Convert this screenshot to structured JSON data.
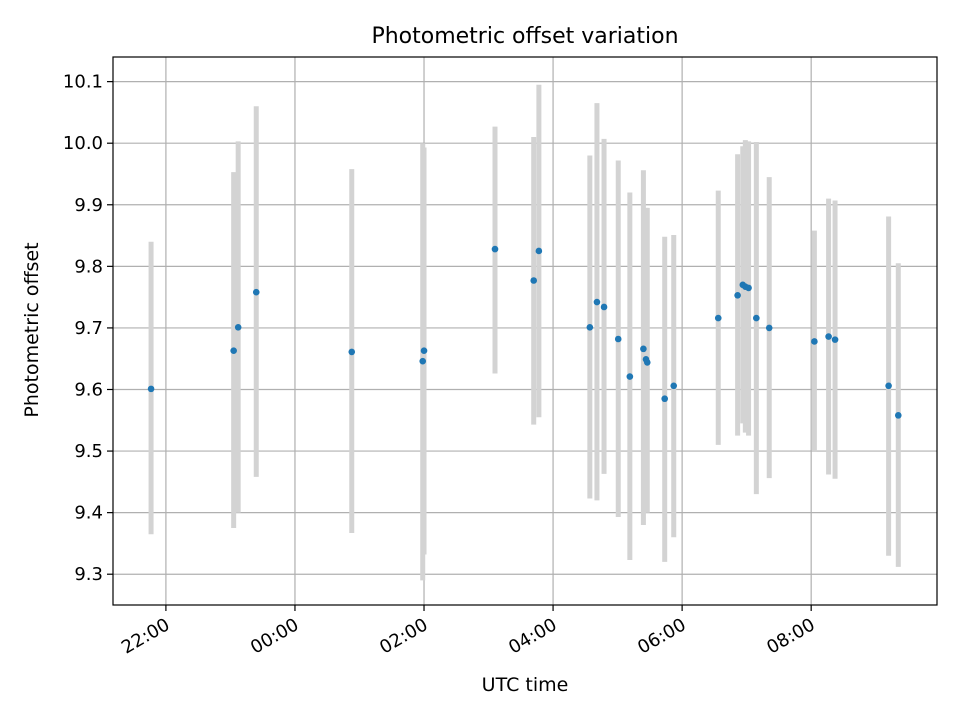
{
  "chart_data": {
    "type": "scatter",
    "title": "Photometric offset variation",
    "xlabel": "UTC time",
    "ylabel": "Photometric offset",
    "grid": true,
    "legend": "none",
    "x_tick_labels": [
      "22:00",
      "00:00",
      "02:00",
      "04:00",
      "06:00",
      "08:00"
    ],
    "x_tick_hours": [
      -2,
      0,
      2,
      4,
      6,
      8
    ],
    "y_tick_labels": [
      "9.3",
      "9.4",
      "9.5",
      "9.6",
      "9.7",
      "9.8",
      "9.9",
      "10.0",
      "10.1"
    ],
    "y_tick_values": [
      9.3,
      9.4,
      9.5,
      9.6,
      9.7,
      9.8,
      9.9,
      10.0,
      10.1
    ],
    "xlim_hours": [
      -2.82,
      9.95
    ],
    "ylim": [
      9.25,
      10.14
    ],
    "point_color": "#1f77b4",
    "errorbar_color": "#d3d3d3",
    "series": [
      {
        "x_hours": [
          -2.23,
          -0.95,
          -0.88,
          -0.6,
          0.88,
          1.98,
          2.0,
          3.1,
          3.7,
          3.78,
          4.57,
          4.68,
          4.79,
          5.01,
          5.19,
          5.4,
          5.44,
          5.46,
          5.73,
          5.87,
          6.56,
          6.86,
          6.94,
          6.98,
          7.03,
          7.15,
          7.35,
          8.05,
          8.27,
          8.37,
          9.2,
          9.35
        ],
        "y": [
          9.601,
          9.663,
          9.701,
          9.758,
          9.661,
          9.646,
          9.663,
          9.828,
          9.777,
          9.825,
          9.701,
          9.742,
          9.734,
          9.682,
          9.621,
          9.666,
          9.649,
          9.644,
          9.585,
          9.606,
          9.716,
          9.753,
          9.77,
          9.767,
          9.765,
          9.716,
          9.7,
          9.678,
          9.686,
          9.681,
          9.606,
          9.558
        ],
        "y_low": [
          9.365,
          9.375,
          9.4,
          9.458,
          9.367,
          9.29,
          9.332,
          9.626,
          9.543,
          9.555,
          9.423,
          9.42,
          9.463,
          9.393,
          9.323,
          9.38,
          9.4,
          9.4,
          9.32,
          9.36,
          9.51,
          9.525,
          9.545,
          9.53,
          9.525,
          9.43,
          9.456,
          9.5,
          9.462,
          9.455,
          9.33,
          9.312
        ],
        "y_high": [
          9.84,
          9.953,
          10.003,
          10.06,
          9.958,
          10.0,
          9.993,
          10.027,
          10.01,
          10.095,
          9.98,
          10.065,
          10.007,
          9.972,
          9.92,
          9.956,
          9.895,
          9.895,
          9.848,
          9.851,
          9.923,
          9.982,
          9.995,
          10.005,
          10.003,
          10.002,
          9.945,
          9.858,
          9.91,
          9.907,
          9.881,
          9.805
        ]
      }
    ]
  }
}
